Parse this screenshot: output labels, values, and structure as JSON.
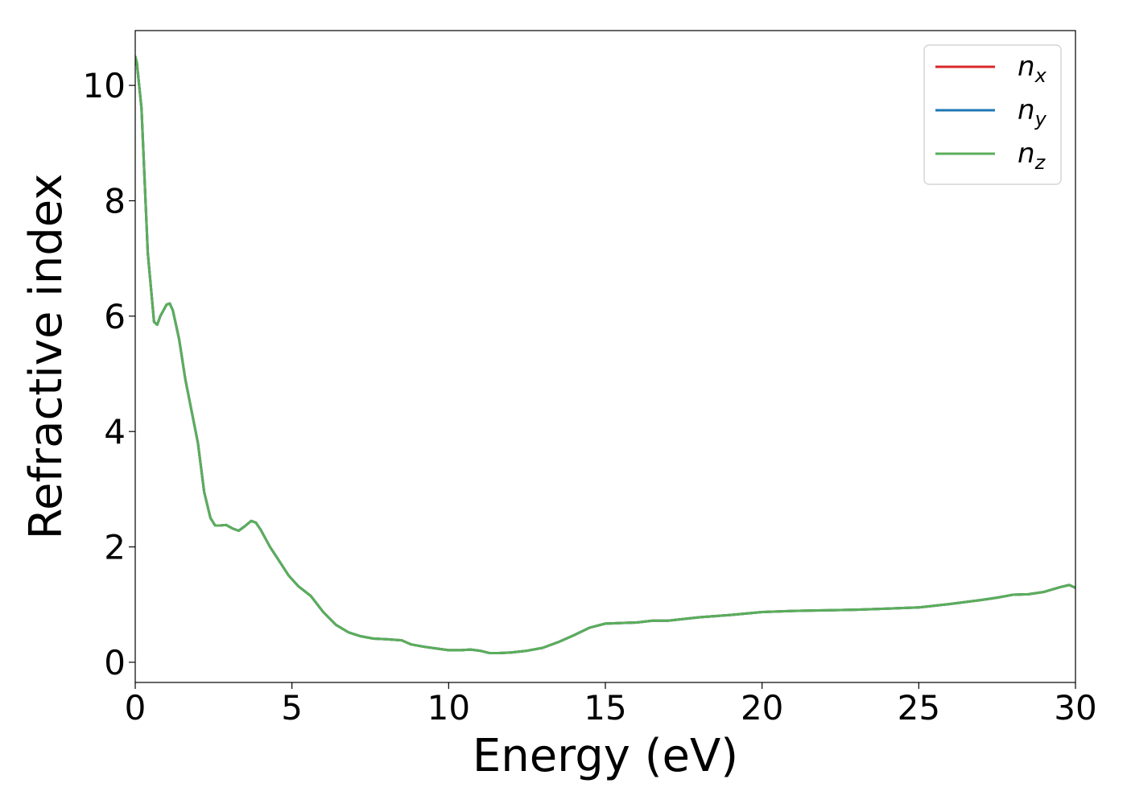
{
  "chart_data": {
    "type": "line",
    "title": "",
    "xlabel": "Energy (eV)",
    "ylabel": "Refractive index",
    "xlim": [
      0,
      30
    ],
    "ylim": [
      -0.35,
      10.95
    ],
    "xticks": [
      0,
      5,
      10,
      15,
      20,
      25,
      30
    ],
    "yticks": [
      0,
      2,
      4,
      6,
      8,
      10
    ],
    "grid": false,
    "legend_position": "top-right",
    "x": [
      0,
      0.05,
      0.2,
      0.4,
      0.6,
      0.7,
      0.8,
      1.0,
      1.1,
      1.2,
      1.4,
      1.6,
      1.8,
      2.0,
      2.2,
      2.4,
      2.55,
      2.7,
      2.9,
      3.1,
      3.3,
      3.5,
      3.7,
      3.85,
      4.0,
      4.3,
      4.6,
      4.9,
      5.2,
      5.6,
      6.0,
      6.4,
      6.8,
      7.2,
      7.6,
      8.0,
      8.5,
      8.8,
      9.2,
      9.6,
      10.0,
      10.4,
      10.7,
      11.0,
      11.3,
      11.6,
      12.0,
      12.5,
      13.0,
      13.5,
      14.0,
      14.5,
      15.0,
      15.5,
      16.0,
      16.5,
      17.0,
      17.5,
      18.0,
      19.0,
      20.0,
      21.0,
      22.0,
      23.0,
      24.0,
      25.0,
      26.0,
      27.0,
      27.5,
      28.0,
      28.5,
      29.0,
      29.5,
      29.8,
      30.0
    ],
    "series": [
      {
        "name": "n_x",
        "color": "#d62728",
        "y": [
          10.5,
          10.4,
          9.6,
          7.1,
          5.9,
          5.85,
          6.0,
          6.2,
          6.22,
          6.1,
          5.6,
          4.9,
          4.35,
          3.8,
          2.95,
          2.5,
          2.37,
          2.37,
          2.38,
          2.32,
          2.28,
          2.36,
          2.45,
          2.42,
          2.3,
          2.0,
          1.75,
          1.5,
          1.32,
          1.15,
          0.87,
          0.65,
          0.52,
          0.45,
          0.41,
          0.4,
          0.38,
          0.31,
          0.27,
          0.24,
          0.21,
          0.21,
          0.22,
          0.2,
          0.16,
          0.16,
          0.17,
          0.2,
          0.25,
          0.35,
          0.47,
          0.6,
          0.67,
          0.68,
          0.69,
          0.72,
          0.72,
          0.75,
          0.78,
          0.82,
          0.87,
          0.89,
          0.9,
          0.91,
          0.93,
          0.95,
          1.01,
          1.08,
          1.12,
          1.17,
          1.18,
          1.22,
          1.3,
          1.34,
          1.29
        ]
      },
      {
        "name": "n_y",
        "color": "#1f77b4",
        "y": [
          10.5,
          10.4,
          9.6,
          7.1,
          5.9,
          5.85,
          6.0,
          6.2,
          6.22,
          6.1,
          5.6,
          4.9,
          4.35,
          3.8,
          2.95,
          2.5,
          2.37,
          2.37,
          2.38,
          2.32,
          2.28,
          2.36,
          2.45,
          2.42,
          2.3,
          2.0,
          1.75,
          1.5,
          1.32,
          1.15,
          0.87,
          0.65,
          0.52,
          0.45,
          0.41,
          0.4,
          0.38,
          0.31,
          0.27,
          0.24,
          0.21,
          0.21,
          0.22,
          0.2,
          0.16,
          0.16,
          0.17,
          0.2,
          0.25,
          0.35,
          0.47,
          0.6,
          0.67,
          0.68,
          0.69,
          0.72,
          0.72,
          0.75,
          0.78,
          0.82,
          0.87,
          0.89,
          0.9,
          0.91,
          0.93,
          0.95,
          1.01,
          1.08,
          1.12,
          1.17,
          1.18,
          1.22,
          1.3,
          1.34,
          1.29
        ]
      },
      {
        "name": "n_z",
        "color": "#5aae5a",
        "y": [
          10.5,
          10.4,
          9.6,
          7.1,
          5.9,
          5.85,
          6.0,
          6.2,
          6.22,
          6.1,
          5.6,
          4.9,
          4.35,
          3.8,
          2.95,
          2.5,
          2.37,
          2.37,
          2.38,
          2.32,
          2.28,
          2.36,
          2.45,
          2.42,
          2.3,
          2.0,
          1.75,
          1.5,
          1.32,
          1.15,
          0.87,
          0.65,
          0.52,
          0.45,
          0.41,
          0.4,
          0.38,
          0.31,
          0.27,
          0.24,
          0.21,
          0.21,
          0.22,
          0.2,
          0.16,
          0.16,
          0.17,
          0.2,
          0.25,
          0.35,
          0.47,
          0.6,
          0.67,
          0.68,
          0.69,
          0.72,
          0.72,
          0.75,
          0.78,
          0.82,
          0.87,
          0.89,
          0.9,
          0.91,
          0.93,
          0.95,
          1.01,
          1.08,
          1.12,
          1.17,
          1.18,
          1.22,
          1.3,
          1.34,
          1.29
        ]
      }
    ],
    "legend": [
      {
        "base": "n",
        "sub": "x"
      },
      {
        "base": "n",
        "sub": "y"
      },
      {
        "base": "n",
        "sub": "z"
      }
    ]
  }
}
